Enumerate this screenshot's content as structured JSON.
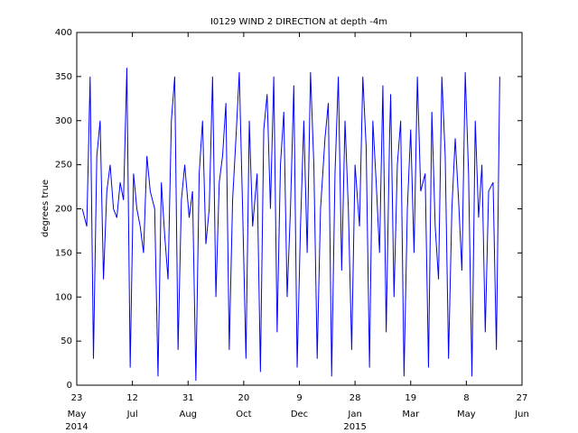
{
  "chart_data": {
    "type": "line",
    "title": "I0129 WIND 2 DIRECTION at depth -4m",
    "y_label": "degrees true",
    "xlim": [
      "2014-05-23",
      "2015-06-27"
    ],
    "xticks": [
      {
        "value": "2014-05-23",
        "label": "23",
        "month": "May",
        "year": "2014"
      },
      {
        "value": "2014-07-12",
        "label": "12",
        "month": "Jul"
      },
      {
        "value": "2014-08-31",
        "label": "31",
        "month": "Aug"
      },
      {
        "value": "2014-10-20",
        "label": "20",
        "month": "Oct"
      },
      {
        "value": "2014-12-09",
        "label": "9",
        "month": "Dec"
      },
      {
        "value": "2015-01-28",
        "label": "28",
        "month": "Jan",
        "year": "2015"
      },
      {
        "value": "2015-03-19",
        "label": "19",
        "month": "Mar"
      },
      {
        "value": "2015-05-08",
        "label": "8",
        "month": "May"
      },
      {
        "value": "2015-06-27",
        "label": "27",
        "month": "Jun"
      }
    ],
    "ylim": [
      0,
      400
    ],
    "yticks": [
      0,
      50,
      100,
      150,
      200,
      250,
      300,
      350,
      400
    ],
    "series": [
      {
        "color": "#0000ff",
        "x": [
          "2014-05-28",
          "2014-06-01",
          "2014-06-04",
          "2014-06-07",
          "2014-06-10",
          "2014-06-13",
          "2014-06-16",
          "2014-06-19",
          "2014-06-22",
          "2014-06-25",
          "2014-06-28",
          "2014-07-01",
          "2014-07-04",
          "2014-07-07",
          "2014-07-10",
          "2014-07-13",
          "2014-07-16",
          "2014-07-19",
          "2014-07-22",
          "2014-07-25",
          "2014-07-28",
          "2014-08-01",
          "2014-08-04",
          "2014-08-07",
          "2014-08-10",
          "2014-08-13",
          "2014-08-16",
          "2014-08-19",
          "2014-08-22",
          "2014-08-25",
          "2014-08-28",
          "2014-09-01",
          "2014-09-04",
          "2014-09-07",
          "2014-09-10",
          "2014-09-13",
          "2014-09-16",
          "2014-09-19",
          "2014-09-22",
          "2014-09-25",
          "2014-09-28",
          "2014-10-01",
          "2014-10-04",
          "2014-10-07",
          "2014-10-10",
          "2014-10-13",
          "2014-10-16",
          "2014-10-19",
          "2014-10-22",
          "2014-10-25",
          "2014-10-28",
          "2014-11-01",
          "2014-11-04",
          "2014-11-07",
          "2014-11-10",
          "2014-11-13",
          "2014-11-16",
          "2014-11-19",
          "2014-11-22",
          "2014-11-25",
          "2014-11-28",
          "2014-12-01",
          "2014-12-04",
          "2014-12-07",
          "2014-12-10",
          "2014-12-13",
          "2014-12-16",
          "2014-12-19",
          "2014-12-22",
          "2014-12-25",
          "2014-12-28",
          "2015-01-01",
          "2015-01-04",
          "2015-01-07",
          "2015-01-10",
          "2015-01-13",
          "2015-01-16",
          "2015-01-19",
          "2015-01-22",
          "2015-01-25",
          "2015-01-28",
          "2015-02-01",
          "2015-02-04",
          "2015-02-07",
          "2015-02-10",
          "2015-02-13",
          "2015-02-16",
          "2015-02-19",
          "2015-02-22",
          "2015-02-25",
          "2015-02-28",
          "2015-03-01",
          "2015-03-04",
          "2015-03-07",
          "2015-03-10",
          "2015-03-13",
          "2015-03-16",
          "2015-03-19",
          "2015-03-22",
          "2015-03-25",
          "2015-03-28",
          "2015-04-01",
          "2015-04-04",
          "2015-04-07",
          "2015-04-10",
          "2015-04-13",
          "2015-04-16",
          "2015-04-19",
          "2015-04-22",
          "2015-04-25",
          "2015-04-28",
          "2015-05-01",
          "2015-05-04",
          "2015-05-07",
          "2015-05-10",
          "2015-05-13",
          "2015-05-16",
          "2015-05-19",
          "2015-05-22",
          "2015-05-25",
          "2015-05-28",
          "2015-06-01",
          "2015-06-04",
          "2015-06-07"
        ],
        "values": [
          200,
          180,
          350,
          30,
          260,
          300,
          120,
          220,
          250,
          200,
          190,
          230,
          210,
          360,
          20,
          240,
          200,
          180,
          150,
          260,
          220,
          200,
          10,
          230,
          170,
          120,
          300,
          350,
          40,
          210,
          250,
          190,
          220,
          5,
          240,
          300,
          160,
          200,
          350,
          100,
          230,
          260,
          320,
          40,
          210,
          280,
          355,
          200,
          30,
          300,
          180,
          240,
          15,
          290,
          330,
          200,
          350,
          60,
          250,
          310,
          100,
          200,
          340,
          20,
          180,
          300,
          150,
          355,
          250,
          30,
          200,
          280,
          320,
          10,
          240,
          350,
          130,
          300,
          200,
          40,
          250,
          180,
          350,
          270,
          20,
          300,
          230,
          150,
          340,
          60,
          280,
          330,
          100,
          250,
          300,
          10,
          200,
          290,
          150,
          350,
          220,
          240,
          20,
          310,
          180,
          120,
          350,
          260,
          30,
          200,
          280,
          210,
          130,
          355,
          240,
          10,
          300,
          190,
          250,
          60,
          220,
          230,
          40,
          350
        ]
      }
    ]
  }
}
